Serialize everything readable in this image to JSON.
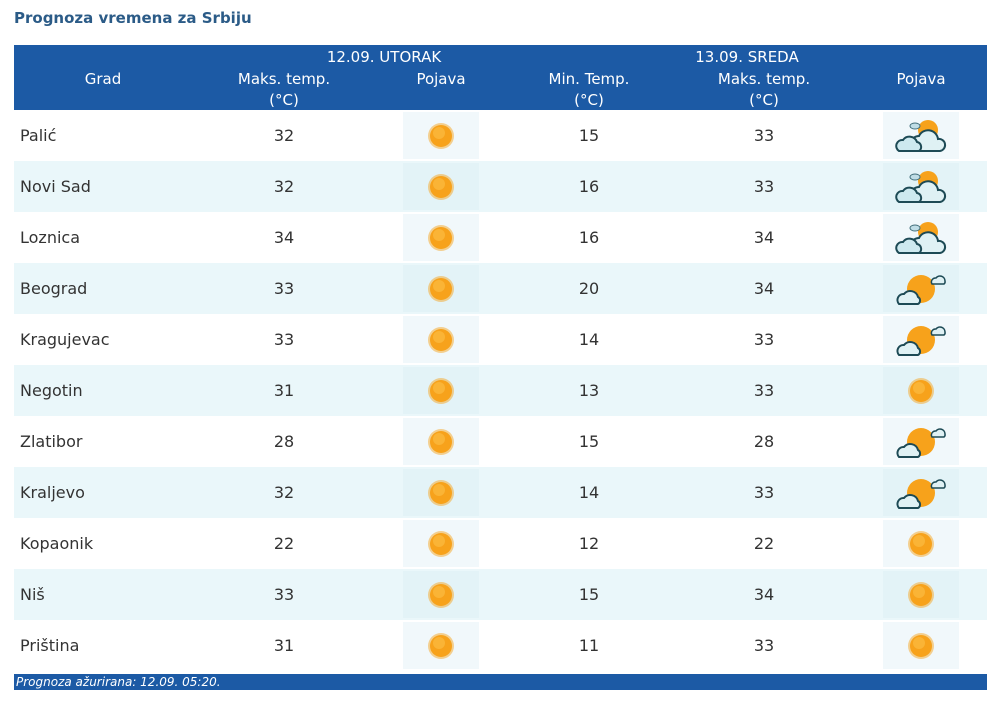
{
  "title": "Prognoza vremena za Srbiju",
  "header": {
    "day1": "12.09. UTORAK",
    "day2": "13.09. SREDA",
    "grad": "Grad",
    "maks": "Maks. temp.",
    "min": "Min. Temp.",
    "unit": "(°C)",
    "pojava": "Pojava"
  },
  "rows": [
    {
      "city": "Palić",
      "d1max": "32",
      "d1icon": "sun-icon",
      "d2min": "15",
      "d2max": "33",
      "d2icon": "partly-cloudy-icon"
    },
    {
      "city": "Novi Sad",
      "d1max": "32",
      "d1icon": "sun-icon",
      "d2min": "16",
      "d2max": "33",
      "d2icon": "partly-cloudy-icon"
    },
    {
      "city": "Loznica",
      "d1max": "34",
      "d1icon": "sun-icon",
      "d2min": "16",
      "d2max": "34",
      "d2icon": "partly-cloudy-icon"
    },
    {
      "city": "Beograd",
      "d1max": "33",
      "d1icon": "sun-icon",
      "d2min": "20",
      "d2max": "34",
      "d2icon": "mostly-sunny-icon"
    },
    {
      "city": "Kragujevac",
      "d1max": "33",
      "d1icon": "sun-icon",
      "d2min": "14",
      "d2max": "33",
      "d2icon": "mostly-sunny-icon"
    },
    {
      "city": "Negotin",
      "d1max": "31",
      "d1icon": "sun-icon",
      "d2min": "13",
      "d2max": "33",
      "d2icon": "sun-icon"
    },
    {
      "city": "Zlatibor",
      "d1max": "28",
      "d1icon": "sun-icon",
      "d2min": "15",
      "d2max": "28",
      "d2icon": "mostly-sunny-icon"
    },
    {
      "city": "Kraljevo",
      "d1max": "32",
      "d1icon": "sun-icon",
      "d2min": "14",
      "d2max": "33",
      "d2icon": "mostly-sunny-icon"
    },
    {
      "city": "Kopaonik",
      "d1max": "22",
      "d1icon": "sun-icon",
      "d2min": "12",
      "d2max": "22",
      "d2icon": "sun-icon"
    },
    {
      "city": "Niš",
      "d1max": "33",
      "d1icon": "sun-icon",
      "d2min": "15",
      "d2max": "34",
      "d2icon": "sun-icon"
    },
    {
      "city": "Priština",
      "d1max": "31",
      "d1icon": "sun-icon",
      "d2min": "11",
      "d2max": "33",
      "d2icon": "sun-icon"
    }
  ],
  "footer": "Prognoza ažurirana:  12.09. 05:20."
}
